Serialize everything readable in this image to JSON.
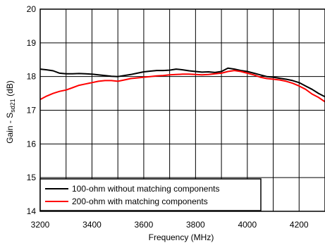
{
  "chart_data": {
    "type": "line",
    "xlabel": "Frequency (MHz)",
    "ylabel": {
      "main": "Gain - S",
      "sub": "sd21",
      "unit": " (dB)"
    },
    "xlim": [
      3200,
      4300
    ],
    "ylim": [
      14,
      20
    ],
    "x_ticks": [
      3200,
      3400,
      3600,
      3800,
      4000,
      4200
    ],
    "y_ticks": [
      14,
      15,
      16,
      17,
      18,
      19,
      20
    ],
    "x_grid_step": 100,
    "grid": true,
    "legend_position": "bottom-left",
    "series": [
      {
        "name": "100-ohm without matching components",
        "color": "#000000",
        "x": [
          3200,
          3225,
          3250,
          3275,
          3300,
          3325,
          3350,
          3375,
          3400,
          3425,
          3450,
          3475,
          3500,
          3525,
          3550,
          3575,
          3600,
          3625,
          3650,
          3675,
          3700,
          3725,
          3750,
          3775,
          3800,
          3825,
          3850,
          3875,
          3900,
          3925,
          3950,
          3975,
          4000,
          4025,
          4050,
          4075,
          4100,
          4125,
          4150,
          4175,
          4200,
          4225,
          4250,
          4275,
          4300
        ],
        "y": [
          18.22,
          18.2,
          18.17,
          18.1,
          18.08,
          18.08,
          18.09,
          18.08,
          18.07,
          18.05,
          18.03,
          18.01,
          18.0,
          18.03,
          18.06,
          18.1,
          18.14,
          18.16,
          18.18,
          18.18,
          18.19,
          18.22,
          18.2,
          18.17,
          18.15,
          18.13,
          18.14,
          18.12,
          18.15,
          18.25,
          18.22,
          18.18,
          18.15,
          18.1,
          18.05,
          18.0,
          17.98,
          17.95,
          17.92,
          17.88,
          17.82,
          17.72,
          17.62,
          17.5,
          17.4
        ]
      },
      {
        "name": "200-ohm with matching components",
        "color": "#ff0000",
        "x": [
          3200,
          3225,
          3250,
          3275,
          3300,
          3325,
          3350,
          3375,
          3400,
          3425,
          3450,
          3475,
          3500,
          3525,
          3550,
          3575,
          3600,
          3625,
          3650,
          3675,
          3700,
          3725,
          3750,
          3775,
          3800,
          3825,
          3850,
          3875,
          3900,
          3925,
          3950,
          3975,
          4000,
          4025,
          4050,
          4075,
          4100,
          4125,
          4150,
          4175,
          4200,
          4225,
          4250,
          4275,
          4300
        ],
        "y": [
          17.32,
          17.42,
          17.5,
          17.56,
          17.6,
          17.67,
          17.74,
          17.78,
          17.82,
          17.86,
          17.88,
          17.88,
          17.86,
          17.9,
          17.94,
          17.96,
          17.98,
          18.0,
          18.02,
          18.03,
          18.05,
          18.06,
          18.07,
          18.07,
          18.06,
          18.05,
          18.06,
          18.08,
          18.1,
          18.15,
          18.18,
          18.15,
          18.1,
          18.05,
          17.98,
          17.94,
          17.92,
          17.9,
          17.86,
          17.8,
          17.72,
          17.62,
          17.48,
          17.38,
          17.25
        ]
      }
    ]
  }
}
